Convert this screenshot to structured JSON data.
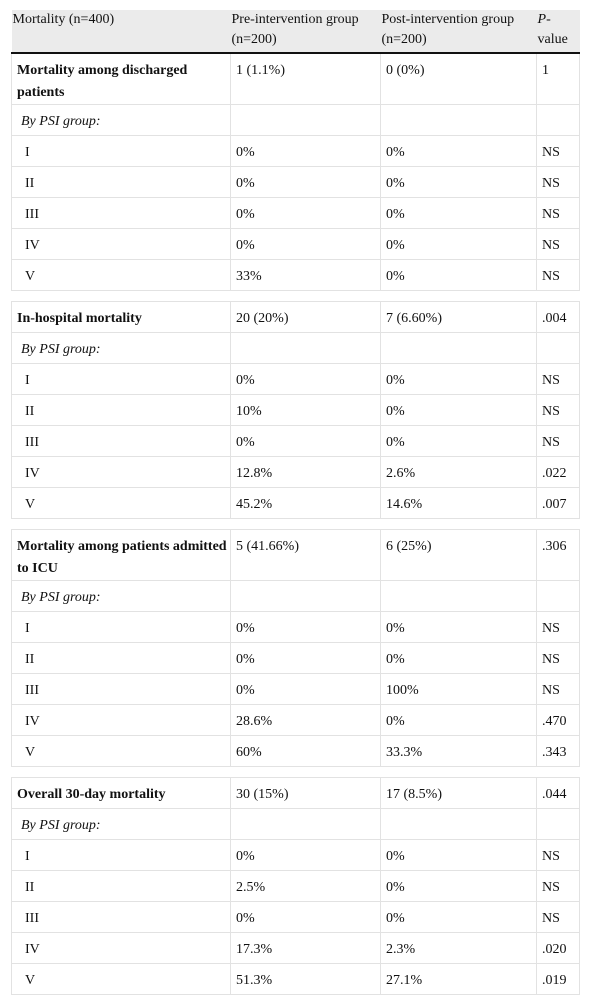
{
  "table": {
    "header": [
      "Mortality (n=400)",
      "Pre-intervention group (n=200)",
      "Post-intervention group (n=200)"
    ],
    "p_header": {
      "italic": "P",
      "rest": "-value"
    },
    "sections": [
      {
        "title": "Mortality among discharged patients",
        "pre": "1 (1.1%)",
        "post": "0 (0%)",
        "p": "1",
        "subheading": "By PSI group:",
        "groups": [
          [
            "I",
            "0%",
            "0%",
            "NS"
          ],
          [
            "II",
            "0%",
            "0%",
            "NS"
          ],
          [
            "III",
            "0%",
            "0%",
            "NS"
          ],
          [
            "IV",
            "0%",
            "0%",
            "NS"
          ],
          [
            "V",
            "33%",
            "0%",
            "NS"
          ]
        ]
      },
      {
        "title": "In-hospital mortality",
        "pre": "20 (20%)",
        "post": "7 (6.60%)",
        "p": ".004",
        "subheading": "By PSI group:",
        "groups": [
          [
            "I",
            "0%",
            "0%",
            "NS"
          ],
          [
            "II",
            "10%",
            "0%",
            "NS"
          ],
          [
            "III",
            "0%",
            "0%",
            "NS"
          ],
          [
            "IV",
            "12.8%",
            "2.6%",
            ".022"
          ],
          [
            "V",
            "45.2%",
            "14.6%",
            ".007"
          ]
        ]
      },
      {
        "title": "Mortality among patients admitted to ICU",
        "pre": "5 (41.66%)",
        "post": "6 (25%)",
        "p": ".306",
        "subheading": "By PSI group:",
        "groups": [
          [
            "I",
            "0%",
            "0%",
            "NS"
          ],
          [
            "II",
            "0%",
            "0%",
            "NS"
          ],
          [
            "III",
            "0%",
            "100%",
            "NS"
          ],
          [
            "IV",
            "28.6%",
            "0%",
            ".470"
          ],
          [
            "V",
            "60%",
            "33.3%",
            ".343"
          ]
        ]
      },
      {
        "title": "Overall 30-day mortality",
        "pre": "30 (15%)",
        "post": "17 (8.5%)",
        "p": ".044",
        "subheading": "By PSI group:",
        "groups": [
          [
            "I",
            "0%",
            "0%",
            "NS"
          ],
          [
            "II",
            "2.5%",
            "0%",
            "NS"
          ],
          [
            "III",
            "0%",
            "0%",
            "NS"
          ],
          [
            "IV",
            "17.3%",
            "2.3%",
            ".020"
          ],
          [
            "V",
            "51.3%",
            "27.1%",
            ".019"
          ]
        ]
      }
    ]
  }
}
